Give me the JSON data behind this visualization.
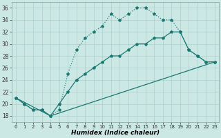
{
  "xlabel": "Humidex (Indice chaleur)",
  "bg_color": "#cce8e5",
  "grid_color": "#aad0cc",
  "line_color": "#1a7870",
  "xlim": [
    -0.5,
    23.5
  ],
  "ylim": [
    17,
    37
  ],
  "xticks": [
    0,
    1,
    2,
    3,
    4,
    5,
    6,
    7,
    8,
    9,
    10,
    11,
    12,
    13,
    14,
    15,
    16,
    17,
    18,
    19,
    20,
    21,
    22,
    23
  ],
  "yticks": [
    18,
    20,
    22,
    24,
    26,
    28,
    30,
    32,
    34,
    36
  ],
  "line1_x": [
    0,
    1,
    2,
    3,
    4,
    5,
    6,
    7,
    8,
    9,
    10,
    11,
    12,
    13,
    14,
    15,
    16,
    17,
    18,
    19,
    20,
    21,
    22,
    23
  ],
  "line1_y": [
    21,
    20,
    19,
    19,
    18,
    19,
    25,
    29,
    31,
    32,
    33,
    35,
    34,
    35,
    36,
    36,
    35,
    34,
    34,
    32,
    29,
    28,
    27,
    27
  ],
  "line2_x": [
    0,
    1,
    2,
    3,
    4,
    5,
    6,
    7,
    8,
    9,
    10,
    11,
    12,
    13,
    14,
    15,
    16,
    17,
    18,
    19,
    20,
    21,
    22,
    23
  ],
  "line2_y": [
    21,
    20,
    19,
    19,
    18,
    20,
    22,
    24,
    25,
    26,
    27,
    28,
    28,
    29,
    30,
    30,
    31,
    31,
    32,
    32,
    29,
    28,
    27,
    27
  ],
  "line3_x": [
    0,
    4,
    23
  ],
  "line3_y": [
    21,
    18,
    27
  ]
}
